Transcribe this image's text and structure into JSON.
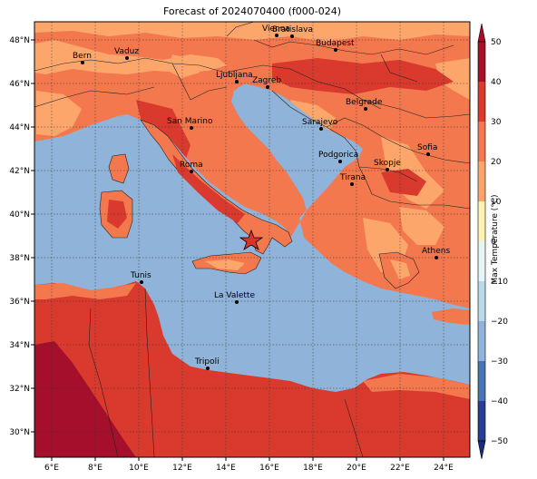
{
  "title": "Forecast of 2024070400 (f000-024)",
  "colorbar": {
    "label": "Max Temperature (°C)",
    "ticks": [
      "50",
      "40",
      "30",
      "20",
      "10",
      "0",
      "−10",
      "−20",
      "−30",
      "−40",
      "−50"
    ]
  },
  "axes": {
    "lon_ticks": [
      "6°E",
      "8°E",
      "10°E",
      "12°E",
      "14°E",
      "16°E",
      "18°E",
      "20°E",
      "22°E",
      "24°E"
    ],
    "lat_ticks": [
      "48°N",
      "46°N",
      "44°N",
      "42°N",
      "40°N",
      "38°N",
      "36°N",
      "34°N",
      "32°N",
      "30°N"
    ]
  },
  "cities": [
    {
      "name": "Bern"
    },
    {
      "name": "Vaduz"
    },
    {
      "name": "Vienna"
    },
    {
      "name": "Bratislava"
    },
    {
      "name": "Budapest"
    },
    {
      "name": "Ljubljana"
    },
    {
      "name": "Zagreb"
    },
    {
      "name": "Belgrade"
    },
    {
      "name": "San Marino"
    },
    {
      "name": "Sarajevo"
    },
    {
      "name": "Sofia"
    },
    {
      "name": "Podgorica"
    },
    {
      "name": "Skopje"
    },
    {
      "name": "Roma"
    },
    {
      "name": "Tirana"
    },
    {
      "name": "Athens"
    },
    {
      "name": "Tunis"
    },
    {
      "name": "La Valette"
    },
    {
      "name": "Tripoli"
    }
  ],
  "colors": {
    "sea": "#8fb3d9",
    "warm_20_30": "#f4784d",
    "warm_10_20": "#fda66c",
    "hot_30_40": "#d93a2d",
    "hot_40_50": "#a50f2b",
    "star": "#d9342b"
  }
}
